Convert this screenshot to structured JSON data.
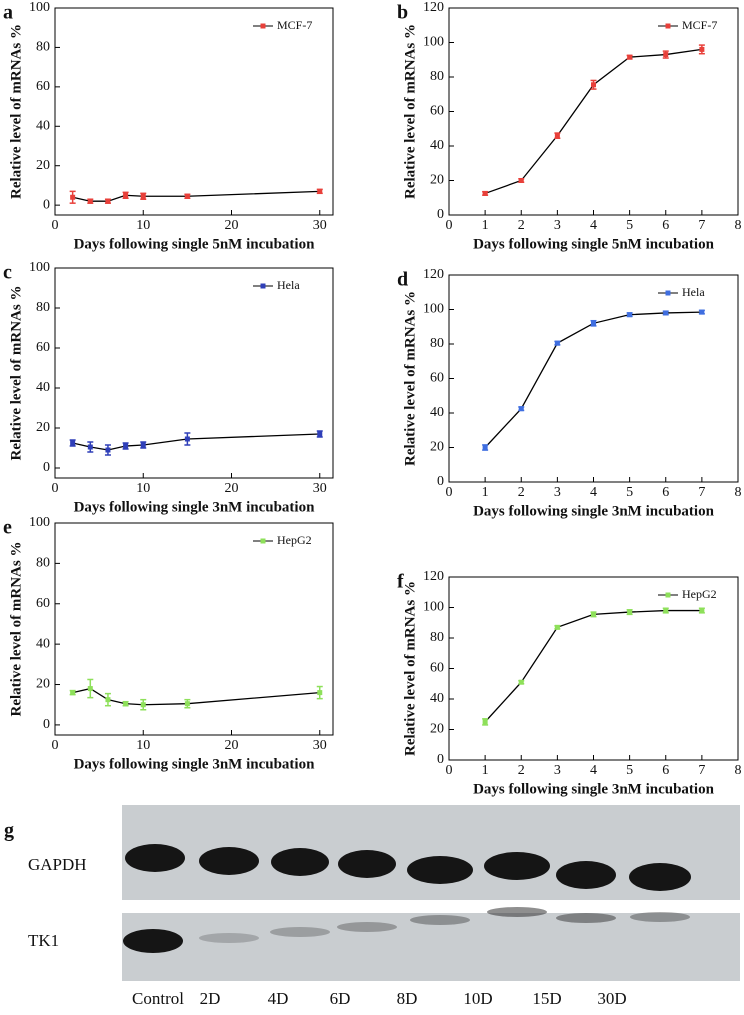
{
  "chart_data": [
    {
      "type": "line",
      "label": "a",
      "xlabel": "Days following single 5nM incubation",
      "ylabel": "Relative level of mRNAs %",
      "x": [
        2,
        4,
        6,
        8,
        10,
        15,
        30
      ],
      "xlim": [
        0,
        31.5
      ],
      "xticks": [
        0,
        10,
        20,
        30
      ],
      "ylim": [
        -5,
        100
      ],
      "yticks": [
        0,
        20,
        40,
        60,
        80,
        100
      ],
      "legend": "upper right",
      "series": [
        {
          "name": "MCF-7",
          "color": "#e8403a",
          "values": [
            4,
            2,
            2,
            5,
            4.5,
            4.5,
            7
          ],
          "errors": [
            3,
            1,
            1,
            1.5,
            1.5,
            1,
            1
          ]
        }
      ]
    },
    {
      "type": "line",
      "label": "b",
      "xlabel": "Days following single 5nM incubation",
      "ylabel": "Relative level of mRNAs %",
      "x": [
        1,
        2,
        3,
        4,
        5,
        6,
        7
      ],
      "xlim": [
        0,
        8
      ],
      "xticks": [
        0,
        1,
        2,
        3,
        4,
        5,
        6,
        7,
        8
      ],
      "ylim": [
        0,
        120
      ],
      "yticks": [
        0,
        20,
        40,
        60,
        80,
        100,
        120
      ],
      "legend": "upper right",
      "series": [
        {
          "name": "MCF-7",
          "color": "#e8403a",
          "values": [
            12.5,
            20,
            46,
            75.5,
            91.5,
            93,
            96
          ],
          "errors": [
            1,
            1,
            1.5,
            2.5,
            1,
            2,
            2.5
          ]
        }
      ]
    },
    {
      "type": "line",
      "label": "c",
      "xlabel": "Days following single 3nM incubation",
      "ylabel": "Relative level of mRNAs %",
      "x": [
        2,
        4,
        6,
        8,
        10,
        15,
        30
      ],
      "xlim": [
        0,
        31.5
      ],
      "xticks": [
        0,
        10,
        20,
        30
      ],
      "ylim": [
        -5,
        100
      ],
      "yticks": [
        0,
        20,
        40,
        60,
        80,
        100
      ],
      "legend": "upper right",
      "series": [
        {
          "name": "Hela",
          "color": "#2f3fb8",
          "values": [
            12.5,
            10.5,
            9,
            11,
            11.5,
            14.5,
            17
          ],
          "errors": [
            1.5,
            2.5,
            2.5,
            1.5,
            1.5,
            3,
            1.5
          ]
        }
      ]
    },
    {
      "type": "line",
      "label": "d",
      "xlabel": "Days following single 3nM incubation",
      "ylabel": "Relative level of mRNAs %",
      "x": [
        1,
        2,
        3,
        4,
        5,
        6,
        7
      ],
      "xlim": [
        0,
        8
      ],
      "xticks": [
        0,
        1,
        2,
        3,
        4,
        5,
        6,
        7,
        8
      ],
      "ylim": [
        0,
        120
      ],
      "yticks": [
        0,
        20,
        40,
        60,
        80,
        100,
        120
      ],
      "legend": "upper right",
      "series": [
        {
          "name": "Hela",
          "color": "#3f6ee0",
          "values": [
            20,
            42.5,
            80.5,
            92,
            97,
            98,
            98.5
          ],
          "errors": [
            1.5,
            1,
            1,
            1.5,
            1,
            1,
            1
          ]
        }
      ]
    },
    {
      "type": "line",
      "label": "e",
      "xlabel": "Days following single 3nM incubation",
      "ylabel": "Relative level of mRNAs %",
      "x": [
        2,
        4,
        6,
        8,
        10,
        15,
        30
      ],
      "xlim": [
        0,
        31.5
      ],
      "xticks": [
        0,
        10,
        20,
        30
      ],
      "ylim": [
        -5,
        100
      ],
      "yticks": [
        0,
        20,
        40,
        60,
        80,
        100
      ],
      "legend": "upper right",
      "series": [
        {
          "name": "HepG2",
          "color": "#8ee05a",
          "values": [
            16,
            18,
            12.5,
            10.5,
            10,
            10.5,
            16
          ],
          "errors": [
            1,
            4.5,
            3,
            1,
            2.5,
            2,
            3
          ]
        }
      ]
    },
    {
      "type": "line",
      "label": "f",
      "xlabel": "Days following single 3nM incubation",
      "ylabel": "Relative level of mRNAs %",
      "x": [
        1,
        2,
        3,
        4,
        5,
        6,
        7
      ],
      "xlim": [
        0,
        8
      ],
      "xticks": [
        0,
        1,
        2,
        3,
        4,
        5,
        6,
        7,
        8
      ],
      "ylim": [
        0,
        120
      ],
      "yticks": [
        0,
        20,
        40,
        60,
        80,
        100,
        120
      ],
      "legend": "upper right",
      "series": [
        {
          "name": "HepG2",
          "color": "#8ee05a",
          "values": [
            25,
            51,
            87,
            95.5,
            97,
            98,
            98
          ],
          "errors": [
            2,
            1,
            1,
            1.5,
            1.5,
            1.5,
            1.5
          ]
        }
      ]
    }
  ],
  "blot": {
    "label": "g",
    "rows": [
      "GAPDH",
      "TK1"
    ],
    "lanes": [
      "Control",
      "2D",
      "4D",
      "6D",
      "8D",
      "10D",
      "15D",
      "30D"
    ]
  }
}
